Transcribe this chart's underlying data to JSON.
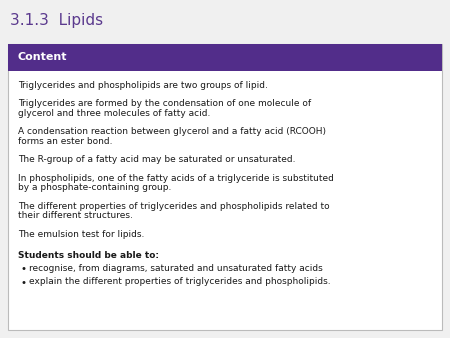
{
  "title": "3.1.3  Lipids",
  "title_color": "#5B3A8E",
  "title_fontsize": 11,
  "header_text": "Content",
  "header_bg_color": "#522D8A",
  "header_text_color": "#FFFFFF",
  "header_fontsize": 8,
  "body_bg_color": "#FFFFFF",
  "border_color": "#BBBBBB",
  "body_paragraphs": [
    "Triglycerides and phospholipids are two groups of lipid.",
    "Triglycerides are formed by the condensation of one molecule of\nglycerol and three molecules of fatty acid.",
    "A condensation reaction between glycerol and a fatty acid (RCOOH)\nforms an ester bond.",
    "The R-group of a fatty acid may be saturated or unsaturated.",
    "In phospholipids, one of the fatty acids of a triglyceride is substituted\nby a phosphate-containing group.",
    "The different properties of triglycerides and phospholipids related to\ntheir different structures.",
    "The emulsion test for lipids."
  ],
  "bold_label": "Students should be able to:",
  "bullet_points": [
    "recognise, from diagrams, saturated and unsaturated fatty acids",
    "explain the different properties of triglycerides and phospholipids."
  ],
  "body_fontsize": 6.5,
  "fig_bg_color": "#F0F0F0"
}
